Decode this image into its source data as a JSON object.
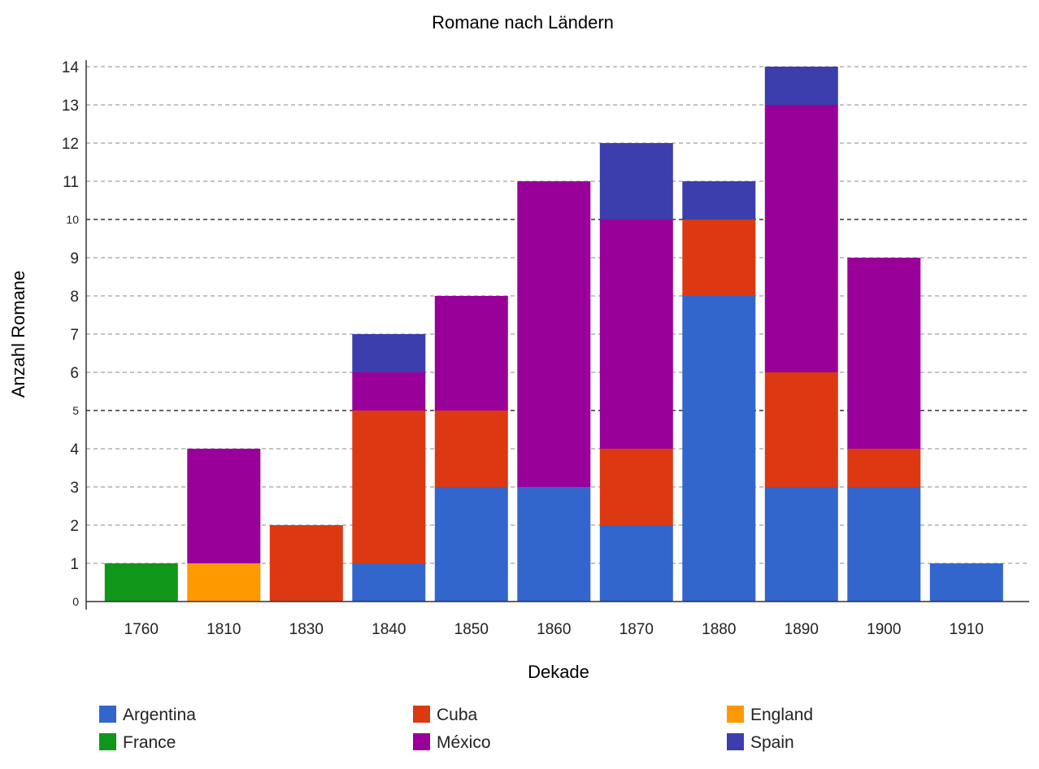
{
  "chart_data": {
    "type": "bar",
    "stacked": true,
    "title": "Romane nach Ländern",
    "xlabel": "Dekade",
    "ylabel": "Anzahl Romane",
    "ylim": [
      0,
      14
    ],
    "yticks": [
      0,
      1,
      2,
      3,
      4,
      5,
      6,
      7,
      8,
      9,
      10,
      11,
      12,
      13,
      14
    ],
    "grid": true,
    "legend_position": "bottom",
    "categories": [
      "1760",
      "1810",
      "1830",
      "1840",
      "1850",
      "1860",
      "1870",
      "1880",
      "1890",
      "1900",
      "1910"
    ],
    "series": [
      {
        "name": "Argentina",
        "color": "#3366cc",
        "values": [
          0,
          0,
          0,
          1,
          3,
          3,
          2,
          8,
          3,
          3,
          1
        ]
      },
      {
        "name": "France",
        "color": "#109618",
        "values": [
          1,
          0,
          0,
          0,
          0,
          0,
          0,
          0,
          0,
          0,
          0
        ]
      },
      {
        "name": "England",
        "color": "#ff9900",
        "values": [
          0,
          1,
          0,
          0,
          0,
          0,
          0,
          0,
          0,
          0,
          0
        ]
      },
      {
        "name": "Cuba",
        "color": "#dc3912",
        "values": [
          0,
          0,
          2,
          4,
          2,
          0,
          2,
          2,
          3,
          1,
          0
        ]
      },
      {
        "name": "México",
        "color": "#990099",
        "values": [
          0,
          3,
          0,
          1,
          3,
          8,
          6,
          0,
          7,
          5,
          0
        ]
      },
      {
        "name": "Spain",
        "color": "#3b3eac",
        "values": [
          0,
          0,
          0,
          1,
          0,
          0,
          2,
          1,
          1,
          0,
          0
        ]
      }
    ],
    "legend_order": [
      "Argentina",
      "Cuba",
      "England",
      "France",
      "México",
      "Spain"
    ]
  }
}
